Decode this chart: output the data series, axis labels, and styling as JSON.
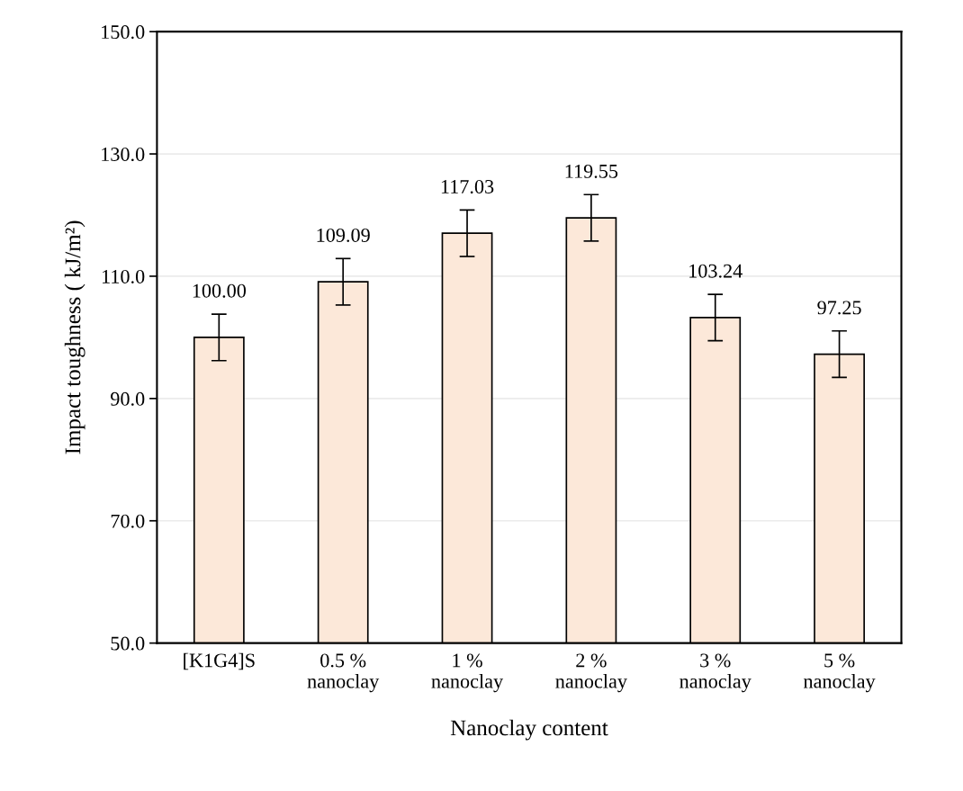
{
  "chart_data": {
    "type": "bar",
    "xlabel": "Nanoclay content",
    "ylabel": "Impact toughness ( kJ/m²)",
    "categories": [
      "[K1G4]S",
      "0.5 %\nnanoclay",
      "1 %\nnanoclay",
      "2 %\nnanoclay",
      "3 %\nnanoclay",
      "5 %\nnanoclay"
    ],
    "values": [
      100.0,
      109.09,
      117.03,
      119.55,
      103.24,
      97.25
    ],
    "errors": [
      3.8,
      3.8,
      3.8,
      3.8,
      3.8,
      3.8
    ],
    "color": "#fce8d9",
    "value_labels": [
      "100.00",
      "109.09",
      "117.03",
      "119.55",
      "103.24",
      "97.25"
    ],
    "ylim": [
      50,
      150
    ],
    "yticks": [
      {
        "value": 50,
        "label": "50.0"
      },
      {
        "value": 70,
        "label": "70.0"
      },
      {
        "value": 90,
        "label": "90.0"
      },
      {
        "value": 110,
        "label": "110.0"
      },
      {
        "value": 130,
        "label": "130.0"
      },
      {
        "value": 150,
        "label": "150.0"
      }
    ],
    "grid": "y",
    "legend": false
  }
}
